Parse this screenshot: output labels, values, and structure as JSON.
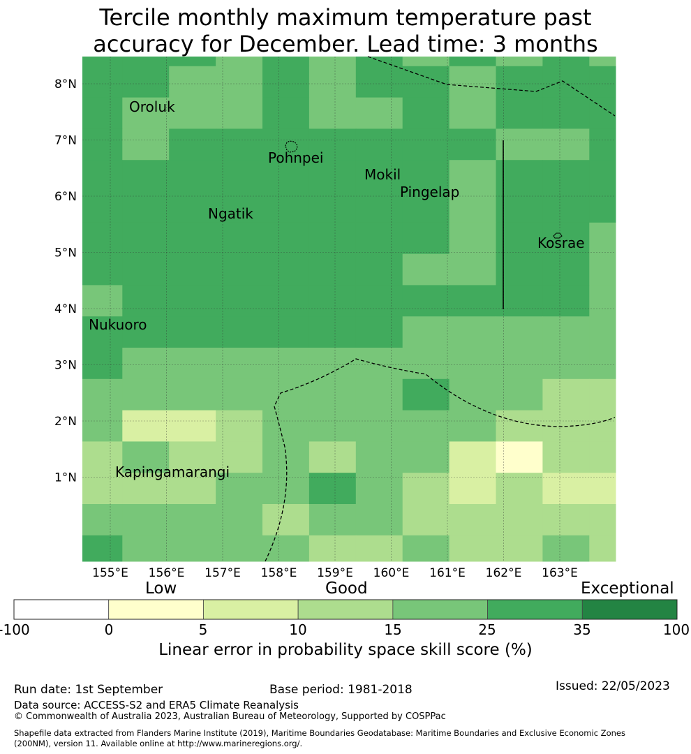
{
  "title": {
    "line1": "Tercile monthly maximum temperature past",
    "line2": "accuracy for December. Lead time: 3 months"
  },
  "map": {
    "lon_labels": [
      "155°E",
      "156°E",
      "157°E",
      "158°E",
      "159°E",
      "160°E",
      "161°E",
      "162°E",
      "163°E"
    ],
    "lat_labels": [
      "8°N",
      "7°N",
      "6°N",
      "5°N",
      "4°N",
      "3°N",
      "2°N",
      "1°N"
    ],
    "lon_values": [
      155,
      156,
      157,
      158,
      159,
      160,
      161,
      162,
      163
    ],
    "lat_values": [
      8,
      7,
      6,
      5,
      4,
      3,
      2,
      1
    ],
    "place_names": [
      "Oroluk",
      "Pohnpei",
      "Mokil",
      "Pingelap",
      "Ngatik",
      "Kosrae",
      "Nukuoro",
      "Kapingamarangi"
    ],
    "grid": [
      [
        25,
        25,
        25,
        15,
        25,
        15,
        25,
        15,
        25,
        15,
        25,
        15
      ],
      [
        25,
        25,
        15,
        15,
        25,
        15,
        25,
        25,
        15,
        25,
        25,
        25
      ],
      [
        25,
        15,
        15,
        15,
        25,
        15,
        15,
        25,
        15,
        25,
        25,
        25
      ],
      [
        25,
        15,
        25,
        25,
        25,
        25,
        25,
        25,
        25,
        15,
        15,
        25
      ],
      [
        25,
        25,
        25,
        25,
        25,
        25,
        25,
        25,
        15,
        25,
        25,
        25
      ],
      [
        25,
        25,
        25,
        25,
        25,
        25,
        25,
        25,
        15,
        25,
        25,
        25
      ],
      [
        25,
        25,
        25,
        25,
        25,
        25,
        25,
        25,
        15,
        25,
        25,
        15
      ],
      [
        25,
        25,
        25,
        25,
        25,
        25,
        25,
        15,
        15,
        25,
        25,
        15
      ],
      [
        15,
        25,
        25,
        25,
        25,
        25,
        25,
        25,
        25,
        25,
        25,
        15
      ],
      [
        25,
        25,
        25,
        25,
        25,
        25,
        25,
        15,
        15,
        15,
        15,
        15
      ],
      [
        25,
        15,
        15,
        15,
        15,
        15,
        15,
        15,
        15,
        15,
        15,
        15
      ],
      [
        15,
        15,
        15,
        15,
        15,
        15,
        15,
        25,
        15,
        15,
        10,
        10
      ],
      [
        15,
        5,
        5,
        10,
        15,
        15,
        15,
        15,
        15,
        10,
        10,
        10
      ],
      [
        10,
        15,
        10,
        10,
        15,
        10,
        15,
        15,
        5,
        0,
        10,
        10
      ],
      [
        10,
        10,
        10,
        15,
        15,
        25,
        15,
        10,
        5,
        10,
        5,
        5
      ],
      [
        15,
        15,
        15,
        15,
        10,
        15,
        15,
        10,
        10,
        10,
        10,
        10
      ],
      [
        25,
        15,
        15,
        15,
        15,
        10,
        10,
        15,
        10,
        10,
        15,
        10
      ]
    ]
  },
  "legend": {
    "category_labels": [
      "Low",
      "Good",
      "Exceptional"
    ],
    "tick_labels": [
      "-100",
      "0",
      "5",
      "10",
      "15",
      "25",
      "35",
      "100"
    ],
    "bins": [
      {
        "from": -100,
        "to": 0,
        "color": "#ffffff"
      },
      {
        "from": 0,
        "to": 5,
        "color": "#ffffcc"
      },
      {
        "from": 5,
        "to": 10,
        "color": "#d9f0a3"
      },
      {
        "from": 10,
        "to": 15,
        "color": "#addd8e"
      },
      {
        "from": 15,
        "to": 25,
        "color": "#78c679"
      },
      {
        "from": 25,
        "to": 35,
        "color": "#41ab5d"
      },
      {
        "from": 35,
        "to": 100,
        "color": "#238443"
      }
    ],
    "title": "Linear error in probability space skill score (%)"
  },
  "footer": {
    "run_date": "Run date: 1st September",
    "base_period": "Base period: 1981-2018",
    "issued": "Issued: 22/05/2023",
    "data_source": "Data source: ACCESS-S2 and ERA5 Climate Reanalysis",
    "copyright": "© Commonwealth of Australia 2023, Australian Bureau of Meteorology, Supported by COSPPac",
    "shapefile_line1": "Shapefile data extracted from Flanders Marine Institute (2019), Maritime Boundaries Geodatabase: Maritime Boundaries and Exclusive Economic Zones",
    "shapefile_line2": "(200NM), version 11. Available online at http://www.marineregions.org/."
  }
}
